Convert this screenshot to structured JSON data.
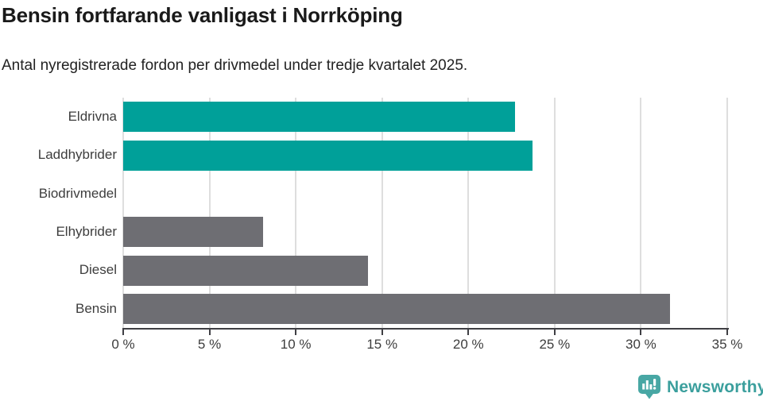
{
  "header": {
    "title": "Bensin fortfarande vanligast i Norrköping",
    "subtitle": "Antal nyregistrerade fordon per drivmedel under tredje kvartalet 2025."
  },
  "chart_data": {
    "type": "bar",
    "orientation": "horizontal",
    "title": "Bensin fortfarande vanligast i Norrköping",
    "subtitle": "Antal nyregistrerade fordon per drivmedel under tredje kvartalet 2025.",
    "categories": [
      "Eldrivna",
      "Laddhybrider",
      "Biodrivmedel",
      "Elhybrider",
      "Diesel",
      "Bensin"
    ],
    "values": [
      22.7,
      23.7,
      0,
      8.1,
      14.2,
      31.7
    ],
    "bar_colors": [
      "#00a099",
      "#00a099",
      "#00a099",
      "#6e6e73",
      "#6e6e73",
      "#6e6e73"
    ],
    "unit": "%",
    "xlim": [
      0,
      35
    ],
    "x_ticks": [
      0,
      5,
      10,
      15,
      20,
      25,
      30,
      35
    ],
    "x_tick_labels": [
      "0 %",
      "5 %",
      "10 %",
      "15 %",
      "20 %",
      "25 %",
      "30 %",
      "35 %"
    ],
    "xlabel": "",
    "ylabel": "",
    "grid": "vertical-gridlines-on",
    "legend": "none"
  },
  "colors": {
    "highlight_teal": "#00a099",
    "neutral_gray": "#6e6e73",
    "gridline": "#dedede",
    "axis": "#3f3f44",
    "tick_text": "#3d3d3d",
    "title_text": "#1a1a1a",
    "brand_teal": "#3b9f9d",
    "brand_icon_teal": "#48a7a4"
  },
  "footer": {
    "brand_label": "Newsworthy",
    "brand_icon": "bar-chart-speech-bubble-icon"
  }
}
